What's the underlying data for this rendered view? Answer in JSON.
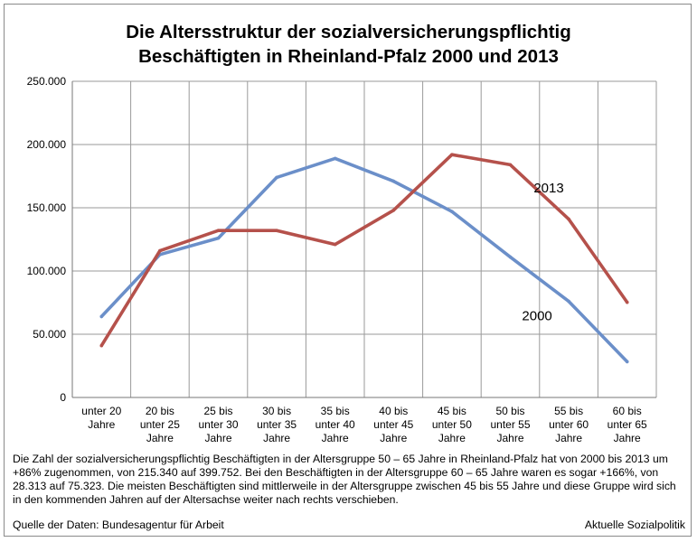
{
  "chart_data": {
    "type": "line",
    "title": [
      "Die Altersstruktur der sozialversicherungspflichtig",
      "Beschäftigten in Rheinland-Pfalz 2000 und 2013"
    ],
    "categories": [
      [
        "unter 20",
        "Jahre"
      ],
      [
        "20 bis",
        "unter 25",
        "Jahre"
      ],
      [
        "25 bis",
        "unter 30",
        "Jahre"
      ],
      [
        "30 bis",
        "unter 35",
        "Jahre"
      ],
      [
        "35 bis",
        "unter 40",
        "Jahre"
      ],
      [
        "40 bis",
        "unter 45",
        "Jahre"
      ],
      [
        "45 bis",
        "unter 50",
        "Jahre"
      ],
      [
        "50 bis",
        "unter 55",
        "Jahre"
      ],
      [
        "55 bis",
        "unter 60",
        "Jahre"
      ],
      [
        "60 bis",
        "unter 65",
        "Jahre"
      ]
    ],
    "series": [
      {
        "name": "2000",
        "color": "#6b8fc9",
        "values": [
          64000,
          113000,
          126000,
          174000,
          189000,
          171000,
          147000,
          111000,
          76000,
          28300
        ]
      },
      {
        "name": "2013",
        "color": "#b5514b",
        "values": [
          41000,
          116000,
          132000,
          132000,
          121000,
          148000,
          192000,
          184000,
          141000,
          75300
        ]
      }
    ],
    "yticks": [
      "0",
      "50.000",
      "100.000",
      "150.000",
      "200.000",
      "250.000"
    ],
    "ylim": [
      0,
      250000
    ],
    "grid": true,
    "xlabel": "",
    "ylabel": ""
  },
  "note": "Die Zahl der sozialversicherungspflichtig Beschäftigten in der Altersgruppe 50 – 65 Jahre in Rheinland-Pfalz hat von 2000 bis 2013 um +86% zugenommen, von 215.340 auf 399.752. Bei den Beschäftigten in der Altersgruppe 60 – 65 Jahre waren es sogar +166%, von 28.313 auf 75.323. Die meisten Beschäftigten sind mittlerweile in der Altersgruppe zwischen 45 bis 55 Jahre und diese Gruppe wird sich in den kommenden Jahren auf der Altersachse weiter nach rechts verschieben.",
  "source": "Quelle der Daten: Bundesagentur für Arbeit",
  "publisher": "Aktuelle Sozialpolitik"
}
